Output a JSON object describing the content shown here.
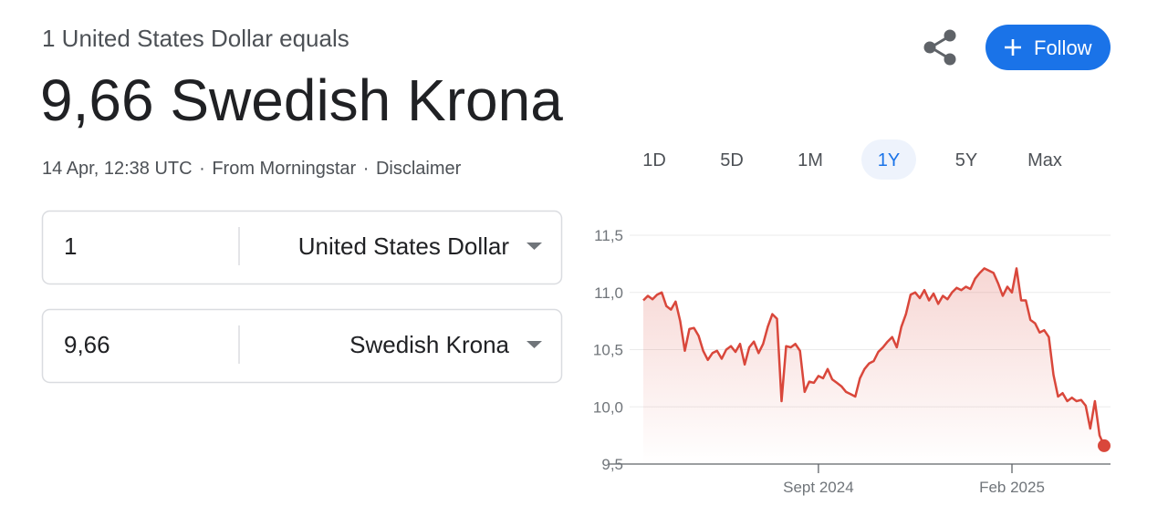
{
  "header": {
    "subtitle": "1 United States Dollar equals",
    "value": "9,66 Swedish Krona",
    "meta": {
      "time": "14 Apr, 12:38 UTC",
      "separator": "·",
      "source": "From Morningstar",
      "disclaimer": "Disclaimer"
    }
  },
  "actions": {
    "follow": "Follow"
  },
  "converter": [
    {
      "amount": "1",
      "currency": "United States Dollar"
    },
    {
      "amount": "9,66",
      "currency": "Swedish Krona"
    }
  ],
  "ranges": {
    "options": [
      "1D",
      "5D",
      "1M",
      "1Y",
      "5Y",
      "Max"
    ],
    "active": "1Y"
  },
  "chart_data": {
    "type": "line",
    "color": "#d9473b",
    "categories": [
      null,
      null,
      null,
      null,
      null,
      null,
      null,
      null,
      null,
      null,
      null,
      null,
      null,
      null,
      null,
      null,
      null,
      null,
      null,
      null,
      null,
      null,
      null,
      null,
      null,
      null,
      null,
      null,
      null,
      null,
      null,
      null,
      null,
      null,
      null,
      null,
      null,
      null,
      "Sept 2024",
      null,
      null,
      null,
      null,
      null,
      null,
      null,
      null,
      null,
      null,
      null,
      null,
      null,
      null,
      null,
      null,
      null,
      null,
      null,
      null,
      null,
      null,
      null,
      null,
      null,
      null,
      null,
      null,
      null,
      null,
      null,
      null,
      null,
      null,
      null,
      null,
      null,
      null,
      null,
      null,
      null,
      "Feb 2025",
      null,
      null,
      null,
      null,
      null,
      null,
      null,
      null,
      null,
      null,
      null,
      null,
      null,
      null,
      null,
      null,
      null,
      null,
      null,
      null
    ],
    "values": [
      10.93,
      10.97,
      10.94,
      10.98,
      11.0,
      10.88,
      10.85,
      10.92,
      10.75,
      10.49,
      10.68,
      10.69,
      10.62,
      10.49,
      10.41,
      10.47,
      10.49,
      10.42,
      10.5,
      10.53,
      10.48,
      10.55,
      10.37,
      10.52,
      10.57,
      10.47,
      10.55,
      10.7,
      10.81,
      10.77,
      10.05,
      10.53,
      10.52,
      10.55,
      10.49,
      10.13,
      10.22,
      10.21,
      10.27,
      10.25,
      10.33,
      10.24,
      10.21,
      10.18,
      10.13,
      10.11,
      10.09,
      10.25,
      10.33,
      10.38,
      10.4,
      10.48,
      10.52,
      10.57,
      10.61,
      10.52,
      10.7,
      10.81,
      10.98,
      11.0,
      10.95,
      11.02,
      10.93,
      10.99,
      10.9,
      10.97,
      10.94,
      11.0,
      11.04,
      11.02,
      11.05,
      11.03,
      11.12,
      11.17,
      11.21,
      11.19,
      11.17,
      11.08,
      10.97,
      11.05,
      11.0,
      11.21,
      10.93,
      10.93,
      10.76,
      10.73,
      10.65,
      10.67,
      10.61,
      10.28,
      10.09,
      10.12,
      10.05,
      10.08,
      10.05,
      10.06,
      10.01,
      9.81,
      10.05,
      9.75,
      9.66
    ],
    "ylim": [
      9.5,
      11.5
    ],
    "yticks": [
      {
        "value": 9.5,
        "label": "9,5"
      },
      {
        "value": 10.0,
        "label": "10,0"
      },
      {
        "value": 10.5,
        "label": "10,5"
      },
      {
        "value": 11.0,
        "label": "11,0"
      },
      {
        "value": 11.5,
        "label": "11,5"
      }
    ],
    "grid": true
  }
}
